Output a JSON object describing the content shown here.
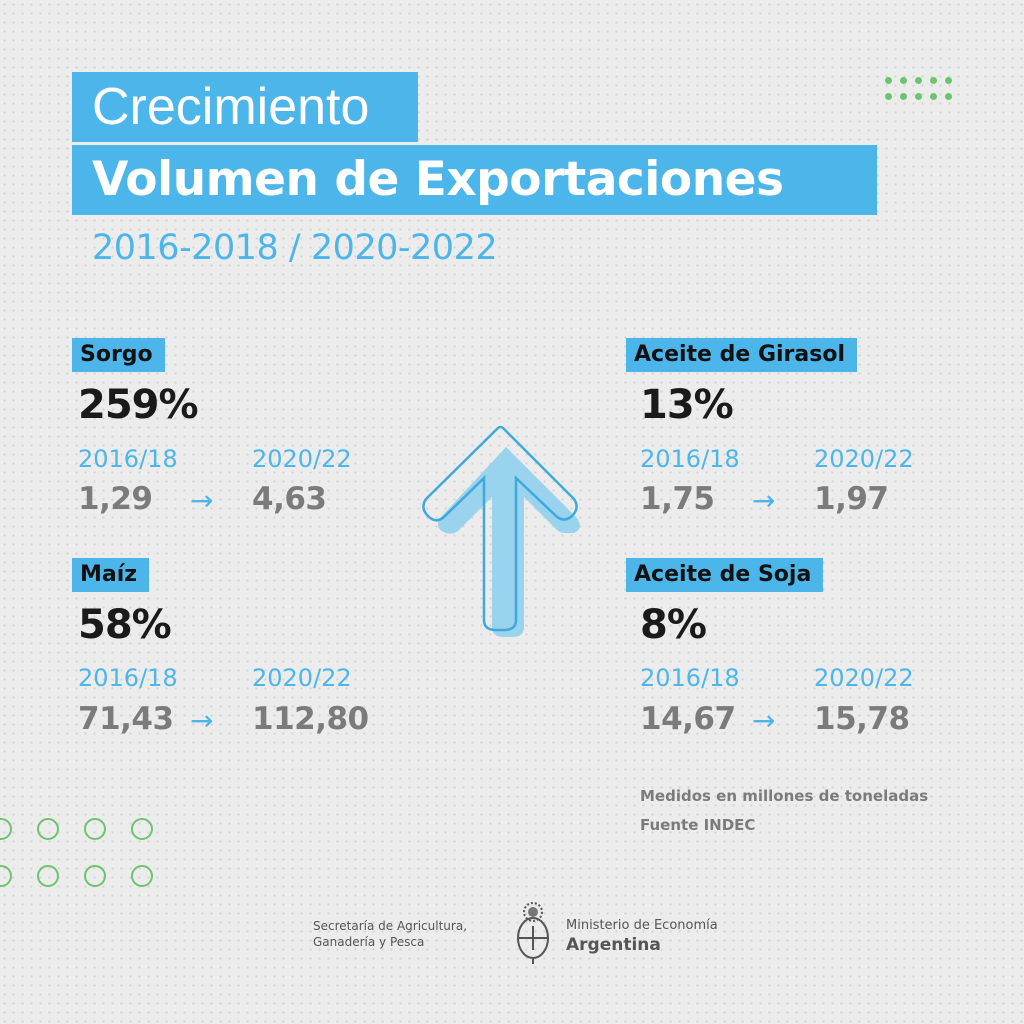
{
  "header": {
    "kicker": "Crecimiento",
    "title": "Volumen de Exportaciones",
    "period": "2016-2018 / 2020-2022"
  },
  "products": [
    {
      "name": "Sorgo",
      "growth": "259%",
      "from_label": "2016/18",
      "to_label": "2020/22",
      "from_value": "1,29",
      "to_value": "4,63"
    },
    {
      "name": "Maíz",
      "growth": "58%",
      "from_label": "2016/18",
      "to_label": "2020/22",
      "from_value": "71,43",
      "to_value": "112,80"
    },
    {
      "name": "Aceite de Girasol",
      "growth": "13%",
      "from_label": "2016/18",
      "to_label": "2020/22",
      "from_value": "1,75",
      "to_value": "1,97"
    },
    {
      "name": "Aceite de Soja",
      "growth": "8%",
      "from_label": "2016/18",
      "to_label": "2020/22",
      "from_value": "14,67",
      "to_value": "15,78"
    }
  ],
  "arrow_glyph": "→",
  "notes": {
    "units": "Medidos en millones de toneladas",
    "source": "Fuente INDEC"
  },
  "footer": {
    "secretaria_line1": "Secretaría de Agricultura,",
    "secretaria_line2": "Ganadería y Pesca",
    "ministerio": "Ministerio de Economía",
    "country": "Argentina"
  },
  "colors": {
    "accent": "#4cb6ea",
    "green": "#6cc56c",
    "value_gray": "#7b7b7b"
  }
}
